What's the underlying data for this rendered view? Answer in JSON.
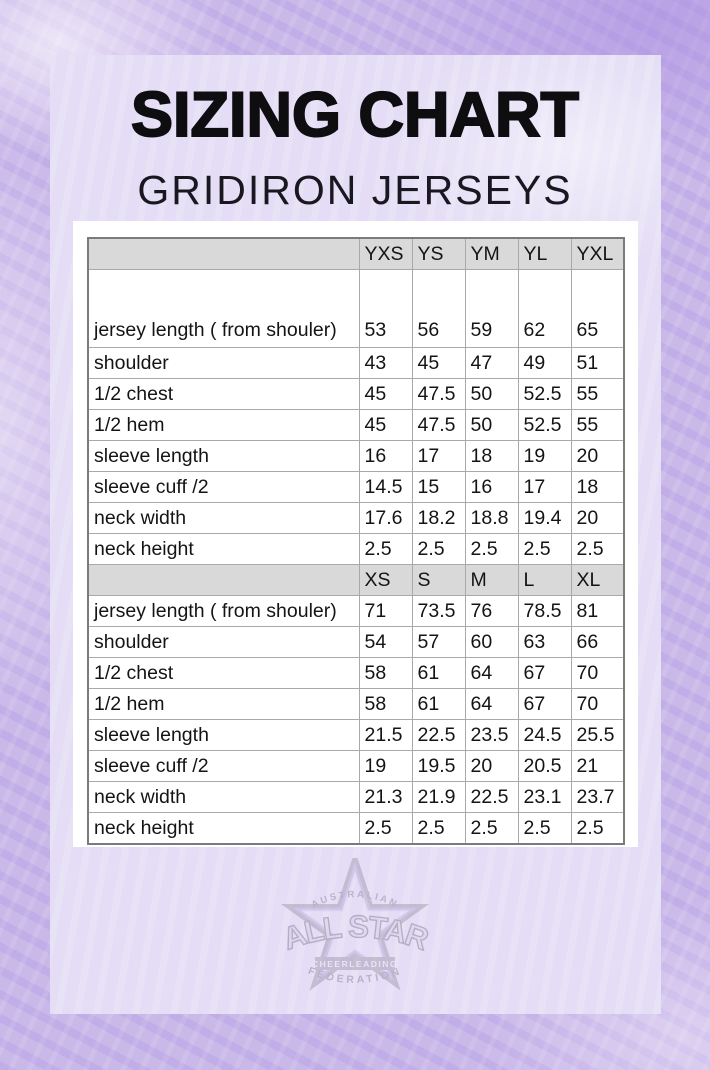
{
  "title": "SIZING CHART",
  "subtitle": "GRIDIRON JERSEYS",
  "table": {
    "sections": [
      {
        "sizes": [
          "YXS",
          "YS",
          "YM",
          "YL",
          "YXL"
        ],
        "rows": [
          {
            "label": "jersey length ( from shouler)",
            "values": [
              "53",
              "56",
              "59",
              "62",
              "65"
            ]
          },
          {
            "label": "shoulder",
            "values": [
              "43",
              "45",
              "47",
              "49",
              "51"
            ]
          },
          {
            "label": "1/2 chest",
            "values": [
              "45",
              "47.5",
              "50",
              "52.5",
              "55"
            ]
          },
          {
            "label": "1/2 hem",
            "values": [
              "45",
              "47.5",
              "50",
              "52.5",
              "55"
            ]
          },
          {
            "label": "sleeve length",
            "values": [
              "16",
              "17",
              "18",
              "19",
              "20"
            ]
          },
          {
            "label": "sleeve cuff /2",
            "values": [
              "14.5",
              "15",
              "16",
              "17",
              "18"
            ]
          },
          {
            "label": "neck width",
            "values": [
              "17.6",
              "18.2",
              "18.8",
              "19.4",
              "20"
            ]
          },
          {
            "label": "neck height",
            "values": [
              "2.5",
              "2.5",
              "2.5",
              "2.5",
              "2.5"
            ]
          }
        ]
      },
      {
        "sizes": [
          "XS",
          "S",
          "M",
          "L",
          "XL"
        ],
        "rows": [
          {
            "label": "jersey length ( from shouler)",
            "values": [
              "71",
              "73.5",
              "76",
              "78.5",
              "81"
            ]
          },
          {
            "label": "shoulder",
            "values": [
              "54",
              "57",
              "60",
              "63",
              "66"
            ]
          },
          {
            "label": "1/2 chest",
            "values": [
              "58",
              "61",
              "64",
              "67",
              "70"
            ]
          },
          {
            "label": "1/2 hem",
            "values": [
              "58",
              "61",
              "64",
              "67",
              "70"
            ]
          },
          {
            "label": "sleeve length",
            "values": [
              "21.5",
              "22.5",
              "23.5",
              "24.5",
              "25.5"
            ]
          },
          {
            "label": "sleeve cuff /2",
            "values": [
              "19",
              "19.5",
              "20",
              "20.5",
              "21"
            ]
          },
          {
            "label": "neck width",
            "values": [
              "21.3",
              "21.9",
              "22.5",
              "23.1",
              "23.7"
            ]
          },
          {
            "label": "neck height",
            "values": [
              "2.5",
              "2.5",
              "2.5",
              "2.5",
              "2.5"
            ]
          }
        ]
      }
    ]
  },
  "logo": {
    "arc_top": "AUSTRALIAN",
    "main": "ALL STAR",
    "box": "CHEERLEADING",
    "arc_bottom": "FEDERATION"
  },
  "colors": {
    "background": "#c7b4e8",
    "panel": "#e5def5",
    "card": "#ffffff",
    "table_header": "#d9d9d9",
    "table_border_outer": "#7b7b7b",
    "table_border_inner": "#a9a9a9",
    "title_text": "#0e0d10"
  }
}
